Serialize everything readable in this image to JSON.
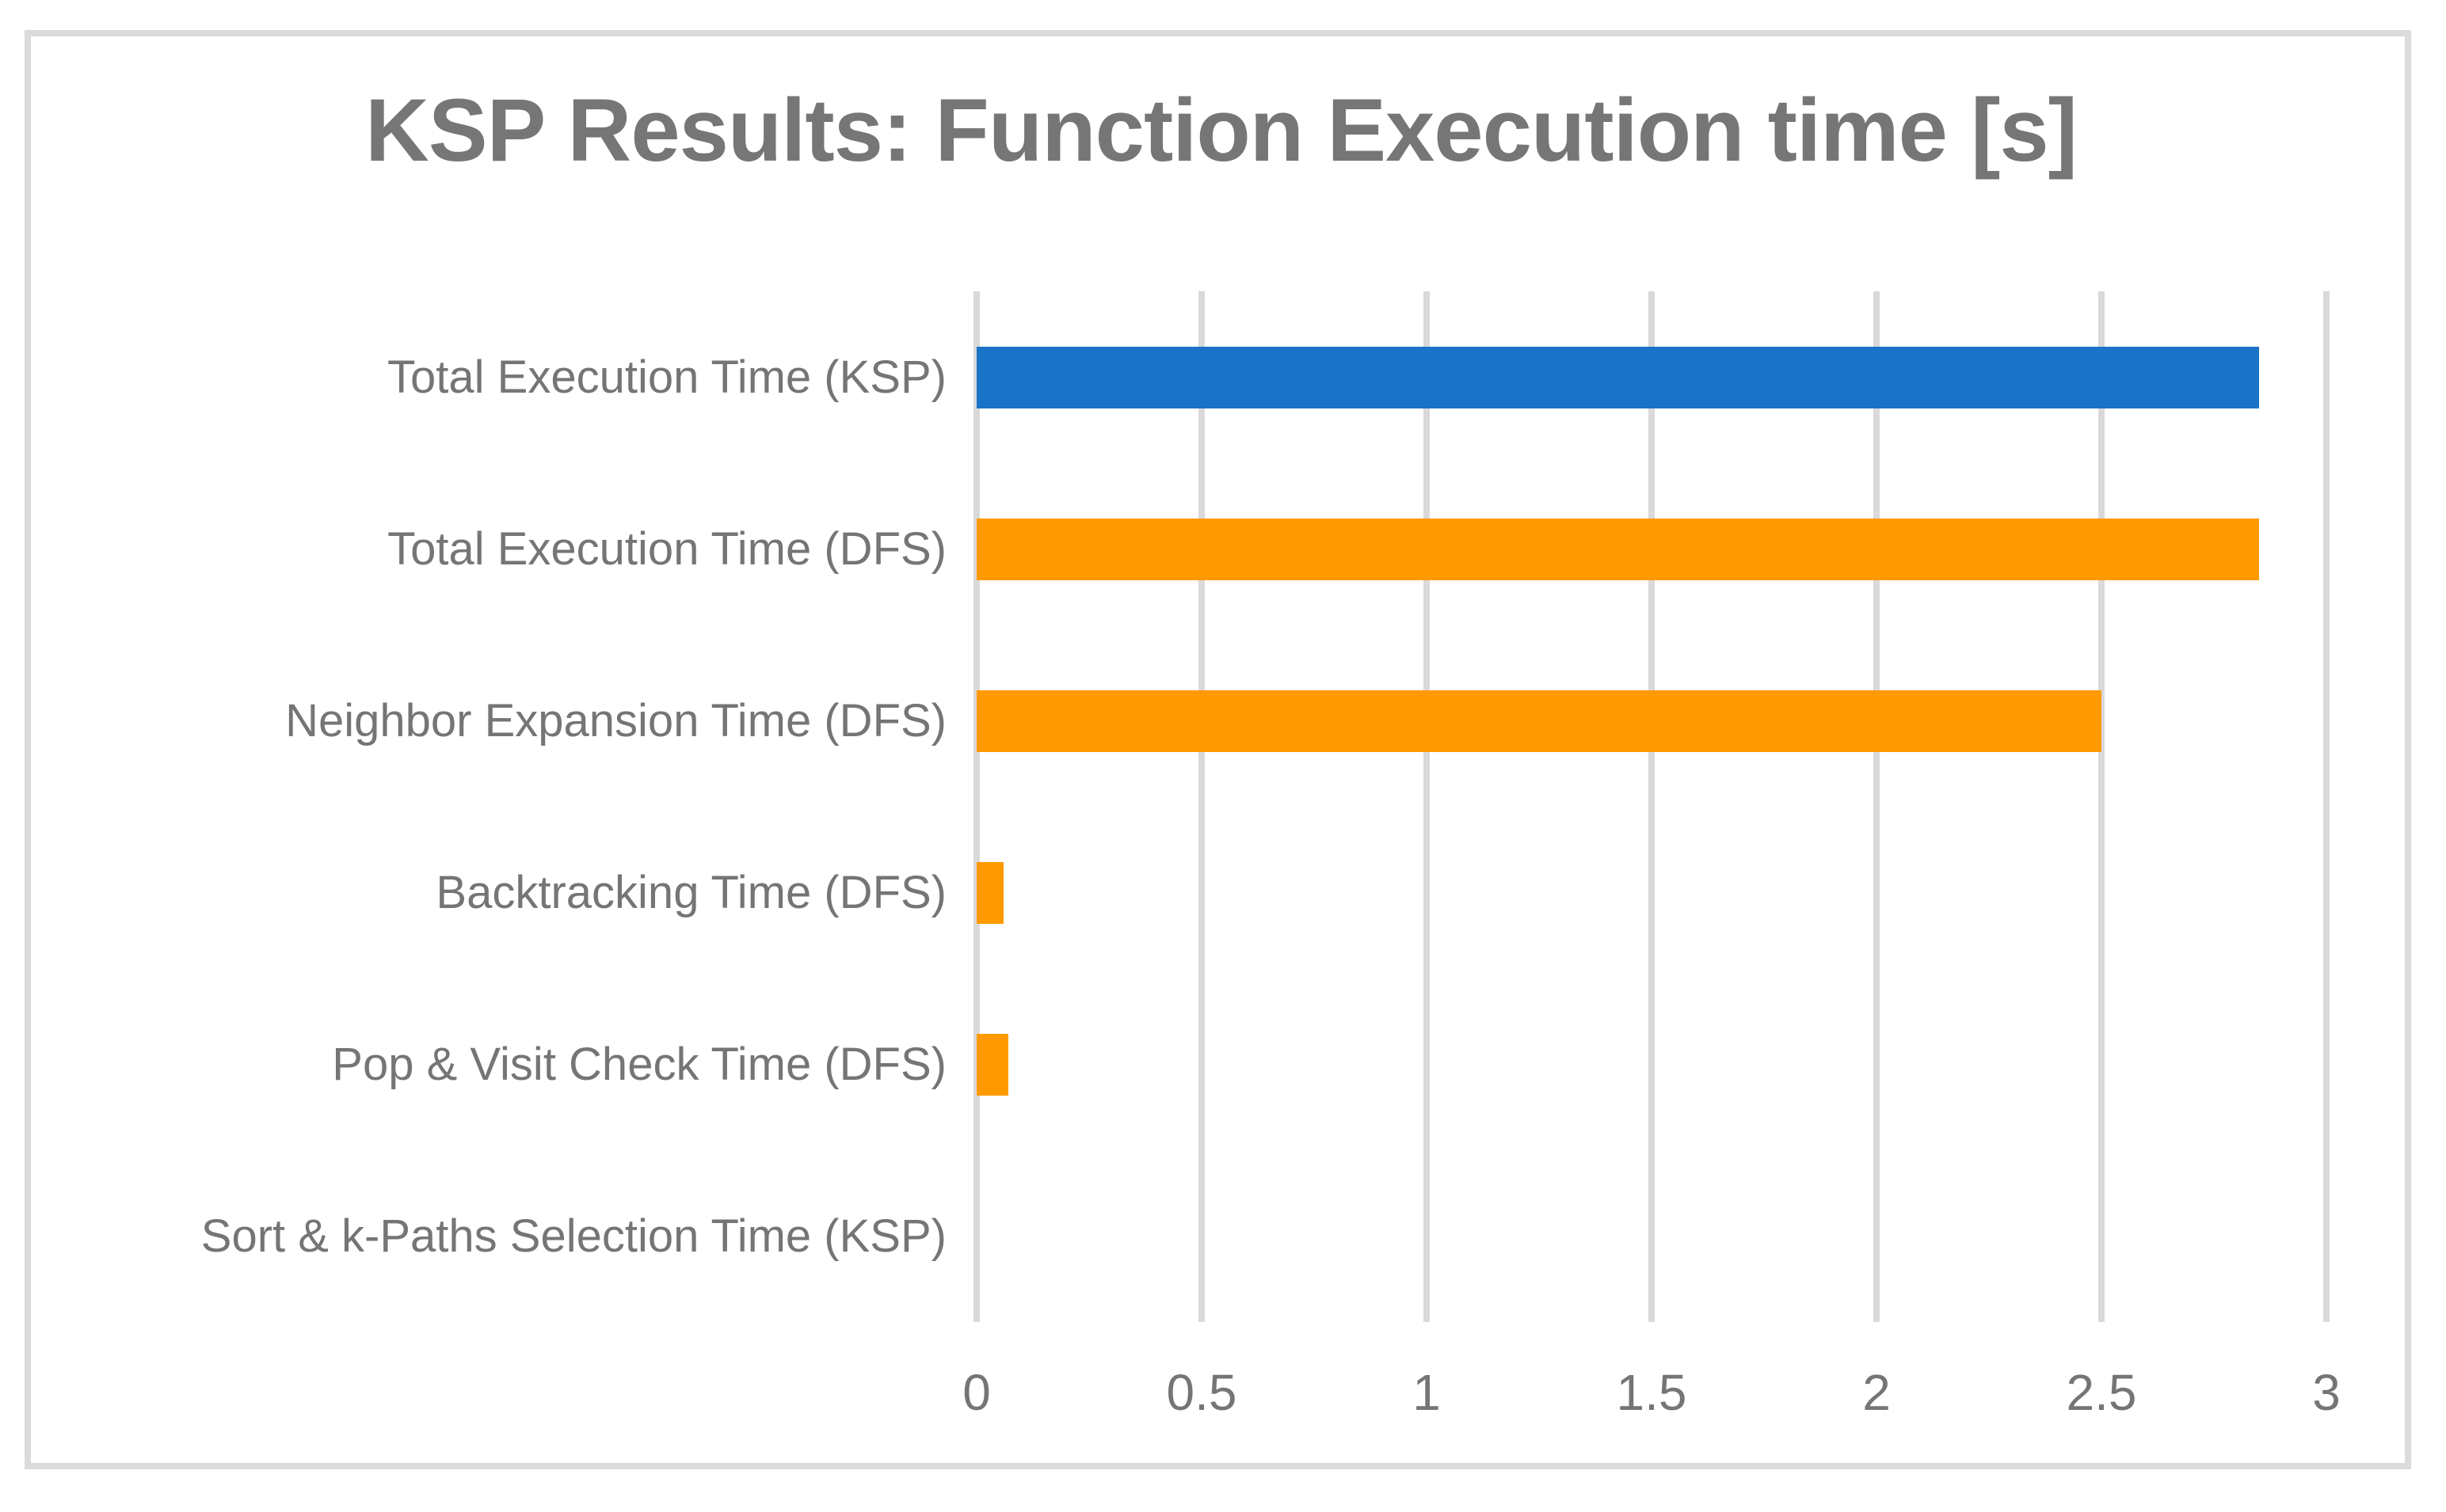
{
  "chart_data": {
    "type": "bar",
    "orientation": "horizontal",
    "title": "KSP Results: Function Execution time [s]",
    "categories": [
      "Total Execution Time (KSP)",
      "Total Execution Time (DFS)",
      "Neighbor Expansion Time (DFS)",
      "Backtracking Time (DFS)",
      "Pop & Visit Check Time (DFS)",
      "Sort & k-Paths Selection Time (KSP)"
    ],
    "values": [
      2.85,
      2.85,
      2.5,
      0.06,
      0.07,
      0
    ],
    "bar_colors": [
      "#1b73c8",
      "#ff9900",
      "#ff9900",
      "#ff9900",
      "#ff9900",
      "#ff9900"
    ],
    "series_note": "blue = KSP total, orange = DFS function breakdown",
    "xlabel": "",
    "ylabel": "",
    "xlim": [
      0,
      3
    ],
    "x_ticks": [
      0,
      0.5,
      1,
      1.5,
      2,
      2.5,
      3
    ],
    "x_tick_labels": [
      "0",
      "0.5",
      "1",
      "1.5",
      "2",
      "2.5",
      "3"
    ],
    "grid": "vertical-on",
    "legend": "none",
    "colors": {
      "gridline": "#d9d9d9",
      "frame_border": "#dbdbdb",
      "text": "#757575",
      "title_text": "#767676",
      "background": "#ffffff"
    }
  }
}
